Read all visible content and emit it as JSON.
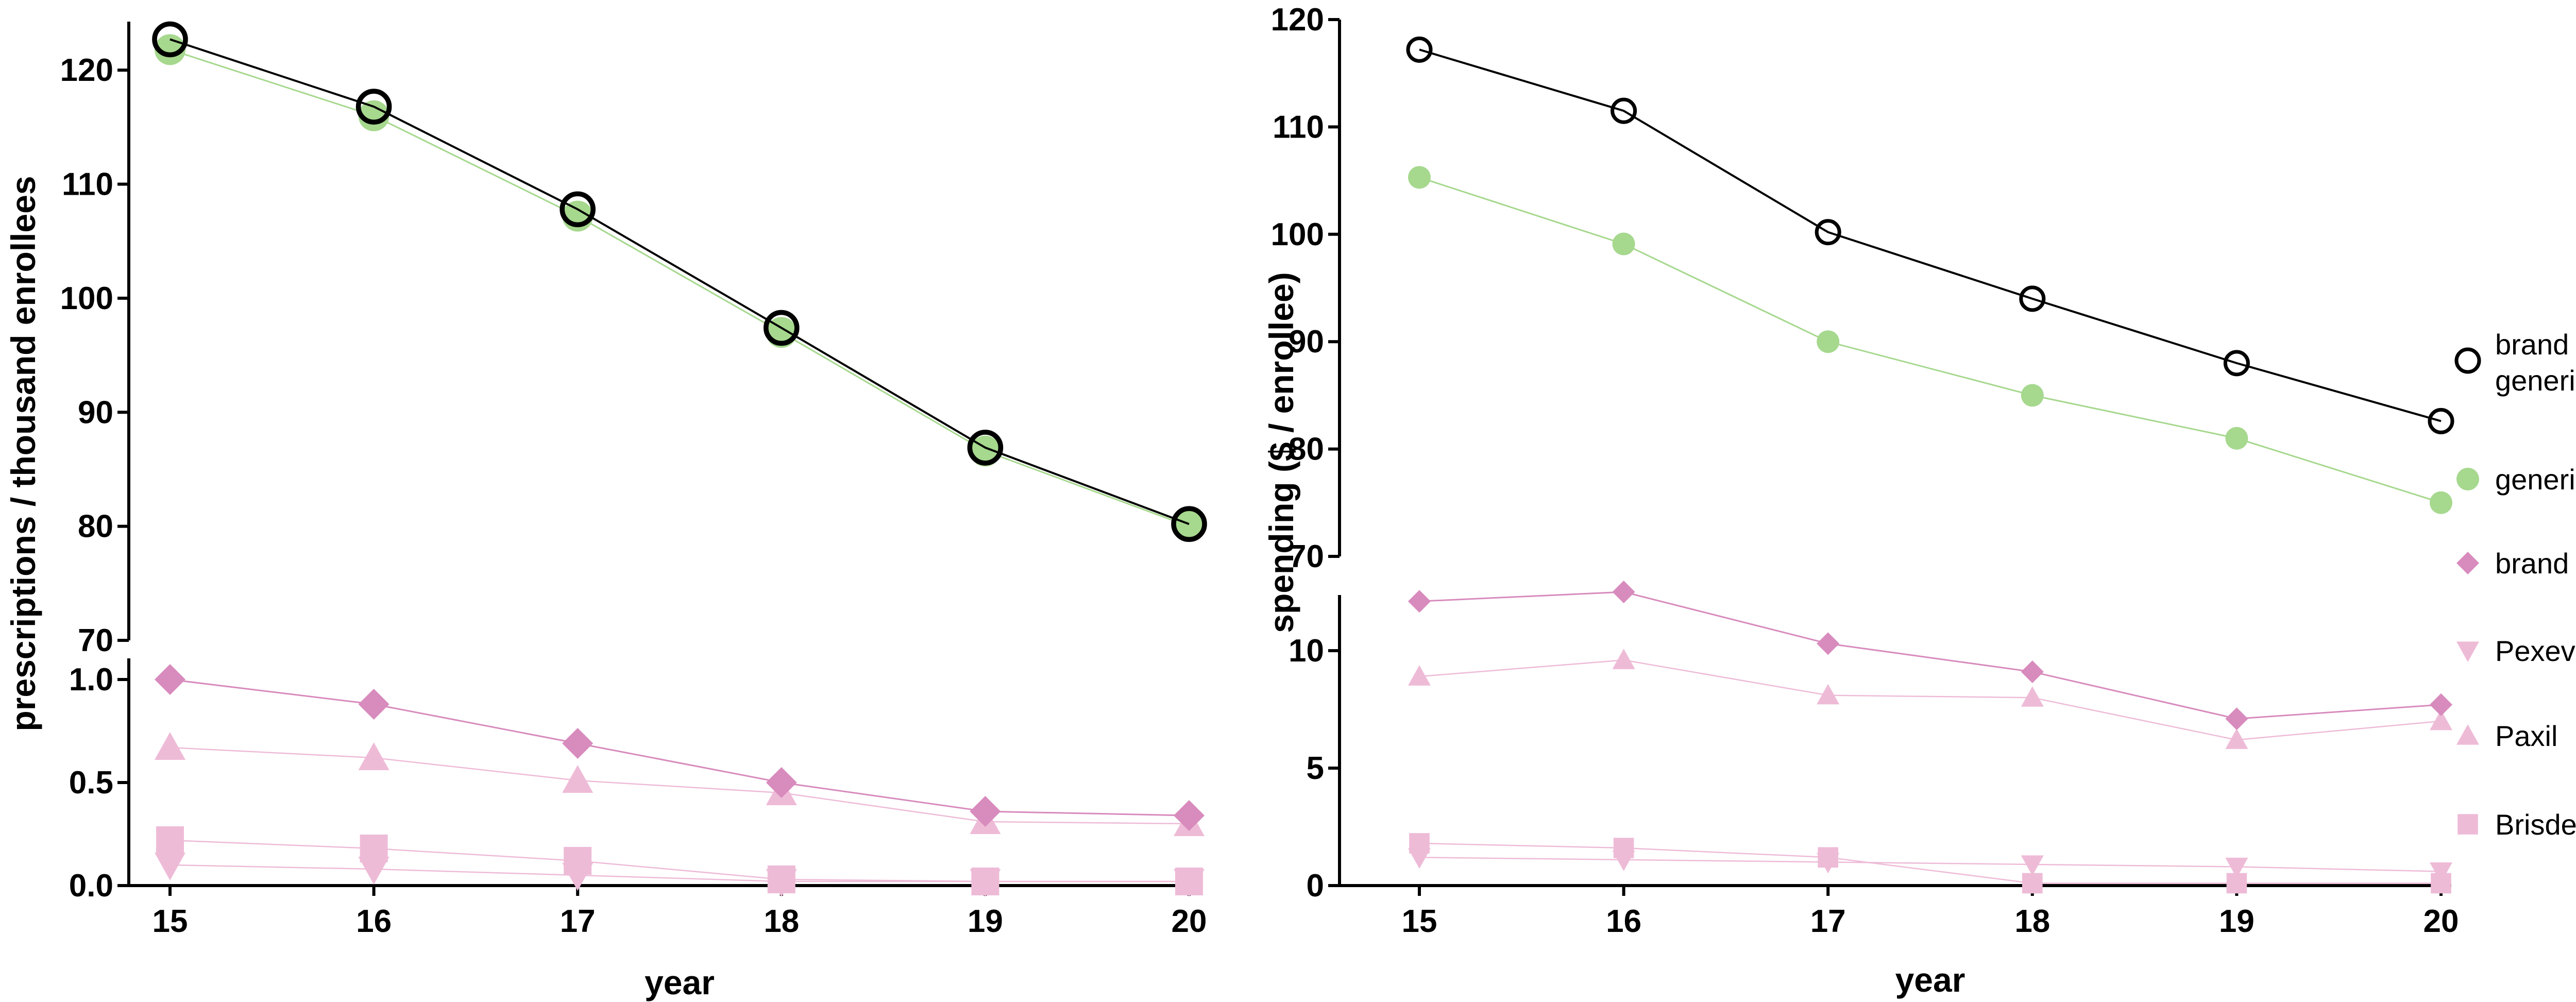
{
  "chart_data": [
    {
      "type": "line",
      "panel": "left",
      "title": "",
      "xlabel": "year",
      "ylabel": "prescriptions / thousand enrollees",
      "x": [
        15,
        16,
        17,
        18,
        19,
        20
      ],
      "xticks": [
        "15",
        "16",
        "17",
        "18",
        "19",
        "20"
      ],
      "split_axis": true,
      "upper_ylim": [
        70,
        125
      ],
      "upper_yticks": [
        "70",
        "80",
        "90",
        "100",
        "110",
        "120"
      ],
      "lower_ylim": [
        0,
        1.0
      ],
      "lower_yticks": [
        "0.0",
        "0.5",
        "1.0"
      ],
      "upper_series": [
        {
          "name": "brand + generic",
          "color": "#000000",
          "marker": "open-circle",
          "values": [
            122.7,
            116.8,
            107.8,
            97.4,
            86.9,
            80.2
          ]
        },
        {
          "name": "generic",
          "color": "#a6d88e",
          "marker": "circle",
          "values": [
            121.8,
            116.0,
            107.2,
            97.0,
            86.6,
            80.0
          ]
        }
      ],
      "lower_series": [
        {
          "name": "brand",
          "color": "#d88bbd",
          "marker": "diamond",
          "values": [
            1.0,
            0.88,
            0.69,
            0.5,
            0.36,
            0.34
          ]
        },
        {
          "name": "Paxil",
          "color": "#eebbd7",
          "marker": "triangle-up",
          "values": [
            0.67,
            0.62,
            0.51,
            0.45,
            0.31,
            0.3
          ]
        },
        {
          "name": "Brisdelle",
          "color": "#eebbd7",
          "marker": "square",
          "values": [
            0.22,
            0.18,
            0.12,
            0.03,
            0.02,
            0.02
          ]
        },
        {
          "name": "Pexeva",
          "color": "#eebbd7",
          "marker": "triangle-down",
          "values": [
            0.1,
            0.08,
            0.05,
            0.02,
            0.02,
            0.02
          ]
        }
      ]
    },
    {
      "type": "line",
      "panel": "right",
      "title": "",
      "xlabel": "year",
      "ylabel": "spending ($ / enrollee)",
      "x": [
        15,
        16,
        17,
        18,
        19,
        20
      ],
      "xticks": [
        "15",
        "16",
        "17",
        "18",
        "19",
        "20"
      ],
      "split_axis": true,
      "upper_ylim": [
        70,
        120
      ],
      "upper_yticks": [
        "70",
        "80",
        "90",
        "100",
        "110",
        "120"
      ],
      "lower_ylim": [
        0,
        12.5
      ],
      "lower_yticks": [
        "0",
        "5",
        "10"
      ],
      "upper_series": [
        {
          "name": "brand + generic",
          "color": "#000000",
          "marker": "open-circle",
          "values": [
            117.2,
            111.5,
            100.2,
            94.0,
            88.0,
            82.6
          ]
        },
        {
          "name": "generic",
          "color": "#a6d88e",
          "marker": "circle",
          "values": [
            105.3,
            99.1,
            90.0,
            85.0,
            81.0,
            75.0
          ]
        }
      ],
      "lower_series": [
        {
          "name": "brand",
          "color": "#d88bbd",
          "marker": "diamond",
          "values": [
            12.1,
            12.5,
            10.3,
            9.1,
            7.1,
            7.7
          ]
        },
        {
          "name": "Paxil",
          "color": "#eebbd7",
          "marker": "triangle-up",
          "values": [
            8.9,
            9.6,
            8.1,
            8.0,
            6.2,
            7.0
          ]
        },
        {
          "name": "Brisdelle",
          "color": "#eebbd7",
          "marker": "square",
          "values": [
            1.8,
            1.6,
            1.2,
            0.1,
            0.1,
            0.1
          ]
        },
        {
          "name": "Pexeva",
          "color": "#eebbd7",
          "marker": "triangle-down",
          "values": [
            1.2,
            1.1,
            1.0,
            0.9,
            0.8,
            0.6
          ]
        }
      ]
    }
  ],
  "legend": {
    "position": "right",
    "items": [
      {
        "label": "brand +",
        "label2": "generic",
        "marker": "open-circle",
        "color": "#000000"
      },
      {
        "label": "generic",
        "label2": "",
        "marker": "circle",
        "color": "#a6d88e"
      },
      {
        "label": "brand",
        "label2": "",
        "marker": "diamond",
        "color": "#d88bbd"
      },
      {
        "label": "Pexeva",
        "label2": "",
        "marker": "triangle-down",
        "color": "#eebbd7"
      },
      {
        "label": "Paxil",
        "label2": "",
        "marker": "triangle-up",
        "color": "#eebbd7"
      },
      {
        "label": "Brisdelle",
        "label2": "",
        "marker": "square",
        "color": "#eebbd7"
      }
    ]
  }
}
